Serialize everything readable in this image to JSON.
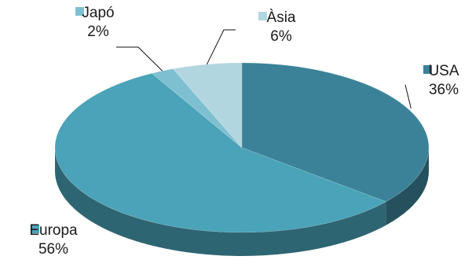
{
  "chart_data": {
    "type": "pie",
    "style": "3d",
    "slices": [
      {
        "label": "USA",
        "percent_label": "36%",
        "value": 36,
        "color": "#3b8298"
      },
      {
        "label": "Europa",
        "percent_label": "56%",
        "value": 56,
        "color": "#4aa3b8"
      },
      {
        "label": "Japó",
        "percent_label": "2%",
        "value": 2,
        "color": "#7ec0d1"
      },
      {
        "label": "Àsia",
        "percent_label": "6%",
        "value": 6,
        "color": "#b2d6e0"
      }
    ]
  }
}
